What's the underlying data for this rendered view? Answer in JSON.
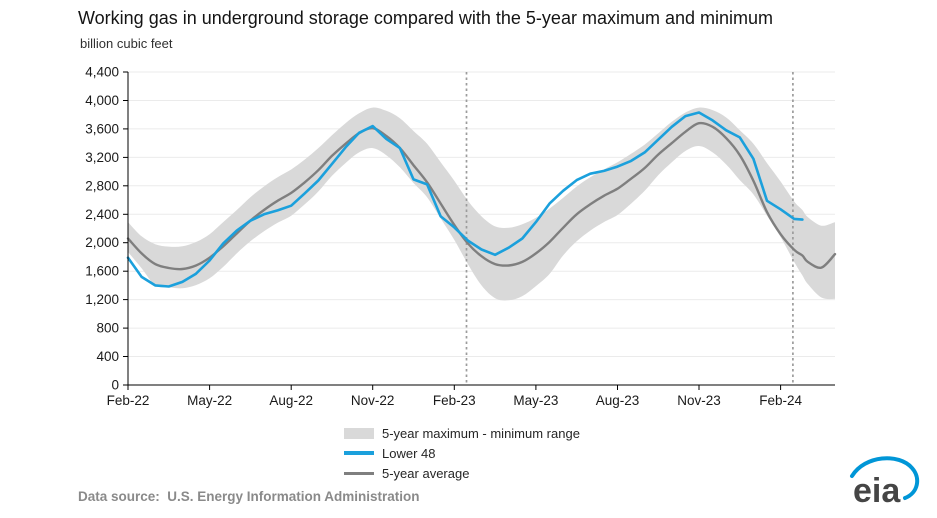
{
  "title": "Working gas in underground storage compared with the 5-year maximum and minimum",
  "unit_label": "billion cubic feet",
  "legend": {
    "range_label": "5-year maximum - minimum range",
    "lower48_label": "Lower 48",
    "average_label": "5-year average"
  },
  "footer": {
    "source": "Data source:  U.S. Energy Information Administration"
  },
  "logo_text": "eia",
  "colors": {
    "band": "#d9d9d9",
    "lower48": "#1ba0dc",
    "average": "#7f7f7f",
    "grid": "#ebebeb",
    "dashed_rule": "#9c9c9c",
    "axis": "#000000",
    "tick_text": "#1a1a1a",
    "logo_blue": "#0096d7",
    "logo_gray": "#454545"
  },
  "chart_data": {
    "type": "line",
    "title": "Working gas in underground storage compared with the 5-year maximum and minimum",
    "ylabel": "billion cubic feet",
    "ylim": [
      0,
      4400
    ],
    "y_tick_step": 400,
    "xlim": [
      0,
      26
    ],
    "x_unit_note": "months since mid-Feb 2022; values in billion cubic feet",
    "x_tick_positions": [
      0,
      3,
      6,
      9,
      12,
      15,
      18,
      21,
      24
    ],
    "x_tick_labels": [
      "Feb-22",
      "May-22",
      "Aug-22",
      "Nov-22",
      "Feb-23",
      "May-23",
      "Aug-23",
      "Nov-23",
      "Feb-24"
    ],
    "dashed_vlines_x": [
      12.45,
      24.45
    ],
    "legend_position": "bottom",
    "x": [
      0,
      0.5,
      1,
      1.5,
      2,
      2.5,
      3,
      3.5,
      4,
      4.5,
      5,
      5.5,
      6,
      6.5,
      7,
      7.5,
      8,
      8.5,
      9,
      9.5,
      10,
      10.5,
      11,
      11.5,
      12,
      12.5,
      13,
      13.5,
      14,
      14.5,
      15,
      15.5,
      16,
      16.5,
      17,
      17.5,
      18,
      18.5,
      19,
      19.5,
      20,
      20.5,
      21,
      21.5,
      22,
      22.5,
      23,
      23.5,
      24,
      24.5,
      24.8,
      25,
      25.5,
      26
    ],
    "series": [
      {
        "name": "5-year maximum",
        "role": "band_max",
        "values": [
          2290,
          2090,
          1980,
          1945,
          1950,
          2010,
          2120,
          2290,
          2460,
          2640,
          2790,
          2920,
          3030,
          3170,
          3330,
          3510,
          3680,
          3820,
          3900,
          3855,
          3750,
          3570,
          3390,
          3130,
          2870,
          2590,
          2370,
          2230,
          2210,
          2260,
          2350,
          2480,
          2630,
          2790,
          2920,
          3030,
          3130,
          3250,
          3380,
          3540,
          3700,
          3830,
          3900,
          3865,
          3760,
          3580,
          3390,
          3120,
          2860,
          2580,
          2460,
          2360,
          2240,
          2290
        ]
      },
      {
        "name": "5-year minimum",
        "role": "band_min",
        "values": [
          1870,
          1640,
          1400,
          1375,
          1360,
          1405,
          1500,
          1660,
          1850,
          2020,
          2160,
          2280,
          2380,
          2540,
          2720,
          2940,
          3120,
          3270,
          3330,
          3230,
          3060,
          2840,
          2640,
          2340,
          2040,
          1700,
          1400,
          1220,
          1190,
          1250,
          1390,
          1560,
          1820,
          2020,
          2170,
          2290,
          2390,
          2550,
          2730,
          2950,
          3130,
          3290,
          3360,
          3270,
          3100,
          2880,
          2680,
          2380,
          2080,
          1730,
          1540,
          1420,
          1230,
          1210
        ]
      },
      {
        "name": "Lower 48",
        "role": "lower48",
        "values": [
          1790,
          1520,
          1400,
          1385,
          1450,
          1565,
          1750,
          1990,
          2170,
          2310,
          2400,
          2455,
          2520,
          2695,
          2875,
          3105,
          3340,
          3545,
          3640,
          3460,
          3330,
          2890,
          2820,
          2370,
          2215,
          2030,
          1905,
          1830,
          1930,
          2060,
          2290,
          2550,
          2730,
          2880,
          2970,
          3010,
          3070,
          3150,
          3270,
          3450,
          3630,
          3780,
          3830,
          3720,
          3580,
          3480,
          3180,
          2590,
          2470,
          2335,
          2325,
          null,
          null,
          null
        ]
      },
      {
        "name": "5-year average",
        "role": "average",
        "values": [
          2060,
          1850,
          1700,
          1645,
          1630,
          1680,
          1790,
          1950,
          2130,
          2310,
          2460,
          2590,
          2700,
          2850,
          3020,
          3220,
          3390,
          3540,
          3610,
          3500,
          3330,
          3090,
          2850,
          2550,
          2250,
          1990,
          1810,
          1700,
          1680,
          1730,
          1850,
          2010,
          2210,
          2400,
          2540,
          2660,
          2760,
          2900,
          3050,
          3240,
          3400,
          3560,
          3680,
          3630,
          3470,
          3230,
          2870,
          2430,
          2120,
          1900,
          1820,
          1730,
          1650,
          1840
        ]
      }
    ]
  }
}
